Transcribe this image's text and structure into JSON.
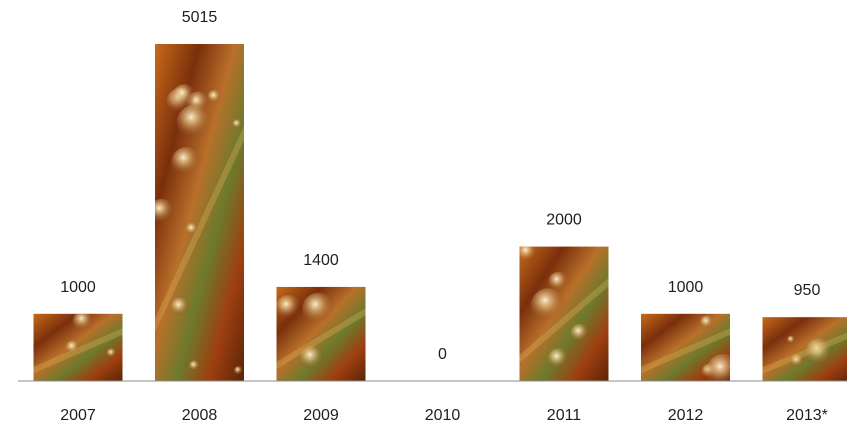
{
  "chart_data": {
    "type": "bar",
    "categories": [
      "2007",
      "2008",
      "2009",
      "2010",
      "2011",
      "2012",
      "2013*"
    ],
    "values": [
      1000,
      5015,
      1400,
      0,
      2000,
      1000,
      950
    ],
    "title": "",
    "xlabel": "",
    "ylabel": "",
    "ylim": [
      0,
      5015
    ],
    "grid": false,
    "legend": "none",
    "bar_fill": "photographic amber/orange liquid-drops texture"
  },
  "colors": {
    "axis": "#8c8c8c",
    "text": "#1f1f1f",
    "bar_dark": "#5a2308",
    "bar_mid": "#a9480f",
    "bar_light": "#d98a2a",
    "bar_green": "#6f7f2a",
    "bar_highlight": "#f3e7c8"
  }
}
